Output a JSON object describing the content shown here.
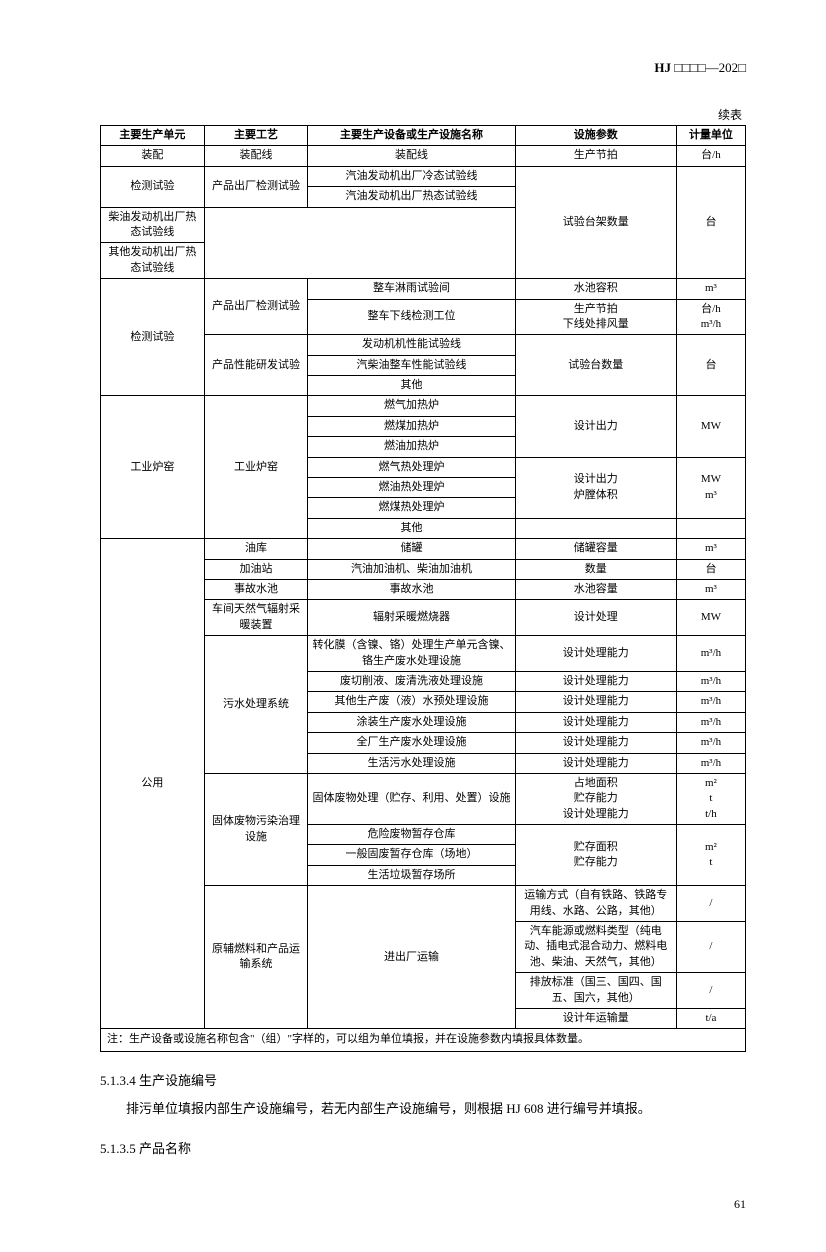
{
  "header": {
    "prefix": "HJ",
    "boxes": "□□□□",
    "dash": "—202□"
  },
  "caption": "续表",
  "columns": [
    "主要生产单元",
    "主要工艺",
    "主要生产设备或生产设施名称",
    "设施参数",
    "计量单位"
  ],
  "rows": [
    {
      "c": [
        "装配",
        "装配线",
        "装配线",
        "生产节拍",
        "台/h"
      ]
    },
    {
      "c": [
        "检测试验",
        "产品出厂检测试验",
        "汽油发动机出厂冷态试验线",
        "试验台架数量",
        "台"
      ],
      "rs": [
        2,
        2,
        1,
        4,
        4
      ]
    },
    {
      "c": [
        null,
        null,
        "汽油发动机出厂热态试验线",
        null,
        null
      ]
    },
    {
      "c": [
        null,
        null,
        "柴油发动机出厂热态试验线",
        null,
        null
      ],
      "rs": [
        1,
        1,
        1,
        0,
        0
      ]
    },
    {
      "c": [
        null,
        null,
        "其他发动机出厂热态试验线",
        null,
        null
      ],
      "rs": [
        1,
        1,
        1,
        0,
        0
      ]
    },
    {
      "c": [
        "检测试验",
        "产品出厂检测试验",
        "整车淋雨试验间",
        "水池容积",
        "m³"
      ],
      "rs": [
        5,
        2,
        1,
        1,
        1
      ]
    },
    {
      "c": [
        null,
        null,
        "整车下线检测工位",
        "生产节拍\n下线处排风量",
        "台/h\nm³/h"
      ]
    },
    {
      "c": [
        null,
        "产品性能研发试验",
        "发动机机性能试验线",
        "试验台数量",
        "台"
      ],
      "rs": [
        0,
        3,
        1,
        3,
        3
      ]
    },
    {
      "c": [
        null,
        null,
        "汽柴油整车性能试验线",
        null,
        null
      ]
    },
    {
      "c": [
        null,
        null,
        "其他",
        null,
        null
      ]
    },
    {
      "c": [
        "工业炉窑",
        "工业炉窑",
        "燃气加热炉",
        "设计出力",
        "MW"
      ],
      "rs": [
        7,
        7,
        1,
        3,
        3
      ]
    },
    {
      "c": [
        null,
        null,
        "燃煤加热炉",
        null,
        null
      ]
    },
    {
      "c": [
        null,
        null,
        "燃油加热炉",
        null,
        null
      ]
    },
    {
      "c": [
        null,
        null,
        "燃气热处理炉",
        "设计出力\n炉膛体积",
        "MW\nm³"
      ],
      "rs": [
        0,
        0,
        1,
        3,
        3
      ]
    },
    {
      "c": [
        null,
        null,
        "燃油热处理炉",
        null,
        null
      ]
    },
    {
      "c": [
        null,
        null,
        "燃煤热处理炉",
        null,
        null
      ]
    },
    {
      "c": [
        null,
        null,
        "其他",
        "",
        ""
      ],
      "rs": [
        0,
        0,
        1,
        1,
        1
      ]
    },
    {
      "c": [
        "公用",
        "油库",
        "储罐",
        "储罐容量",
        "m³"
      ],
      "rs": [
        20,
        1,
        1,
        1,
        1
      ]
    },
    {
      "c": [
        null,
        "加油站",
        "汽油加油机、柴油加油机",
        "数量",
        "台"
      ]
    },
    {
      "c": [
        null,
        "事故水池",
        "事故水池",
        "水池容量",
        "m³"
      ]
    },
    {
      "c": [
        null,
        "车间天然气辐射采暖装置",
        "辐射采暖燃烧器",
        "设计处理",
        "MW"
      ]
    },
    {
      "c": [
        null,
        "污水处理系统",
        "转化膜（含镍、铬）处理生产单元含镍、铬生产废水处理设施",
        "设计处理能力",
        "m³/h"
      ],
      "rs": [
        0,
        6,
        1,
        1,
        1
      ]
    },
    {
      "c": [
        null,
        null,
        "废切削液、废清洗液处理设施",
        "设计处理能力",
        "m³/h"
      ]
    },
    {
      "c": [
        null,
        null,
        "其他生产废（液）水预处理设施",
        "设计处理能力",
        "m³/h"
      ]
    },
    {
      "c": [
        null,
        null,
        "涂装生产废水处理设施",
        "设计处理能力",
        "m³/h"
      ]
    },
    {
      "c": [
        null,
        null,
        "全厂生产废水处理设施",
        "设计处理能力",
        "m³/h"
      ]
    },
    {
      "c": [
        null,
        null,
        "生活污水处理设施",
        "设计处理能力",
        "m³/h"
      ]
    },
    {
      "c": [
        null,
        "固体废物污染治理设施",
        "固体废物处理（贮存、利用、处置）设施",
        "占地面积\n贮存能力\n设计处理能力",
        "m²\nt\nt/h"
      ],
      "rs": [
        0,
        4,
        1,
        1,
        1
      ]
    },
    {
      "c": [
        null,
        null,
        "危险废物暂存仓库",
        "贮存面积\n贮存能力",
        "m²\nt"
      ],
      "rs": [
        0,
        0,
        1,
        3,
        3
      ]
    },
    {
      "c": [
        null,
        null,
        "一般固废暂存仓库（场地）",
        null,
        null
      ]
    },
    {
      "c": [
        null,
        null,
        "生活垃圾暂存场所",
        null,
        null
      ]
    },
    {
      "c": [
        null,
        "原辅燃料和产品运输系统",
        "进出厂运输",
        "运输方式（自有铁路、铁路专用线、水路、公路，其他）",
        "/"
      ],
      "rs": [
        0,
        4,
        4,
        1,
        1
      ]
    },
    {
      "c": [
        null,
        null,
        null,
        "汽车能源或燃料类型（纯电动、插电式混合动力、燃料电池、柴油、天然气，其他）",
        "/"
      ]
    },
    {
      "c": [
        null,
        null,
        null,
        "排放标准（国三、国四、国五、国六，其他）",
        "/"
      ]
    },
    {
      "c": [
        null,
        null,
        null,
        "设计年运输量",
        "t/a"
      ]
    }
  ],
  "note": "注：生产设备或设施名称包含\"（组）\"字样的，可以组为单位填报，并在设施参数内填报具体数量。",
  "sections": [
    {
      "number": "5.1.3.4",
      "title": "生产设施编号",
      "text": "排污单位填报内部生产设施编号，若无内部生产设施编号，则根据 HJ 608 进行编号并填报。"
    },
    {
      "number": "5.1.3.5",
      "title": "产品名称",
      "text": ""
    }
  ],
  "page_number": "61"
}
